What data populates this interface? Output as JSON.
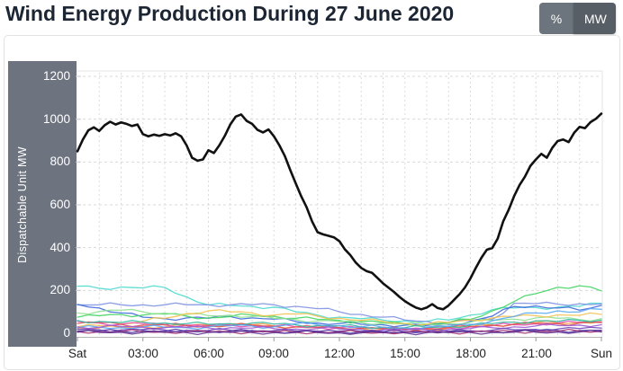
{
  "header": {
    "title": "Wind Energy Production During 27 June 2020",
    "unit_toggle": {
      "percent_label": "%",
      "mw_label": "MW",
      "active": "MW"
    }
  },
  "chart": {
    "y_axis_label": "Dispatchable Unit MW"
  },
  "colors": {
    "title_text": "#1c2533",
    "axis_panel": "#6d7480",
    "percent_button": "#6c757d",
    "mw_button_active": "#575e66",
    "card_border": "#e2e2e2",
    "gridline": "#d9d9d9",
    "total_line": "#111111"
  },
  "chart_data": {
    "type": "line",
    "title": "Wind Energy Production During 27 June 2020",
    "xlabel": "",
    "ylabel": "Dispatchable Unit MW",
    "ylim": [
      0,
      1200
    ],
    "xlim_hours": [
      0,
      24
    ],
    "y_ticks": [
      0,
      200,
      400,
      600,
      800,
      1000,
      1200
    ],
    "x_tick_hours": [
      0,
      3,
      6,
      9,
      12,
      15,
      18,
      21,
      24
    ],
    "x_tick_labels": [
      "Sat",
      "03:00",
      "06:00",
      "09:00",
      "12:00",
      "15:00",
      "18:00",
      "21:00",
      "Sun"
    ],
    "grid": "dashed horizontal every 200 MW, dashed vertical every hour",
    "legend": "none",
    "series": [
      {
        "name": "total-wind-production",
        "role": "total",
        "color": "#111111",
        "step_hours": 0.25,
        "values": [
          850,
          905,
          948,
          962,
          945,
          972,
          988,
          975,
          985,
          978,
          968,
          975,
          930,
          920,
          928,
          922,
          930,
          924,
          934,
          920,
          878,
          820,
          806,
          812,
          855,
          842,
          878,
          922,
          975,
          1012,
          1022,
          992,
          978,
          950,
          938,
          952,
          920,
          878,
          828,
          762,
          700,
          640,
          588,
          522,
          472,
          462,
          455,
          448,
          430,
          392,
          365,
          330,
          305,
          290,
          282,
          258,
          233,
          213,
          193,
          170,
          150,
          134,
          120,
          112,
          120,
          136,
          118,
          112,
          130,
          156,
          182,
          214,
          256,
          306,
          352,
          390,
          398,
          442,
          522,
          576,
          640,
          692,
          732,
          782,
          812,
          838,
          820,
          866,
          898,
          905,
          893,
          936,
          964,
          958,
          986,
          1002,
          1026
        ]
      },
      {
        "name": "unit-turquoise",
        "role": "unit",
        "color": "#4ad8ce",
        "step_hours": 1,
        "values": [
          220,
          210,
          216,
          212,
          214,
          170,
          132,
          130,
          126,
          122,
          100,
          85,
          75,
          68,
          62,
          58,
          55,
          62,
          85,
          110,
          118,
          120,
          122,
          126,
          140
        ]
      },
      {
        "name": "unit-periwinkle",
        "role": "unit",
        "color": "#7b8fe0",
        "step_hours": 1,
        "values": [
          133,
          133,
          133,
          133,
          133,
          133,
          133,
          133,
          133,
          133,
          126,
          115,
          100,
          88,
          75,
          62,
          55,
          50,
          60,
          65,
          140,
          138,
          136,
          138,
          137
        ]
      },
      {
        "name": "unit-royal-blue",
        "role": "unit",
        "color": "#3a66d8",
        "step_hours": 1,
        "values": [
          135,
          118,
          95,
          75,
          68,
          72,
          70,
          78,
          72,
          66,
          55,
          48,
          45,
          42,
          40,
          38,
          36,
          42,
          55,
          80,
          125,
          128,
          118,
          108,
          130
        ]
      },
      {
        "name": "unit-green",
        "role": "unit",
        "color": "#3fd45f",
        "step_hours": 1,
        "values": [
          75,
          82,
          88,
          85,
          90,
          80,
          72,
          78,
          85,
          80,
          70,
          65,
          60,
          55,
          50,
          45,
          42,
          50,
          65,
          105,
          148,
          185,
          215,
          222,
          198
        ]
      },
      {
        "name": "unit-light-green",
        "role": "unit",
        "color": "#90e090",
        "step_hours": 1,
        "values": [
          95,
          102,
          108,
          100,
          94,
          88,
          82,
          85,
          78,
          70,
          64,
          58,
          54,
          50,
          47,
          44,
          42,
          45,
          52,
          60,
          66,
          72,
          70,
          64,
          68
        ]
      },
      {
        "name": "unit-gold",
        "role": "unit",
        "color": "#f2c14e",
        "step_hours": 1,
        "values": [
          30,
          36,
          44,
          56,
          70,
          92,
          105,
          100,
          95,
          85,
          90,
          80,
          70,
          60,
          55,
          46,
          42,
          50,
          62,
          72,
          78,
          82,
          86,
          84,
          88
        ]
      },
      {
        "name": "unit-orange",
        "role": "unit",
        "color": "#f59a3c",
        "step_hours": 1,
        "values": [
          22,
          25,
          28,
          32,
          30,
          35,
          40,
          44,
          40,
          34,
          30,
          28,
          25,
          22,
          20,
          18,
          20,
          25,
          30,
          38,
          44,
          50,
          48,
          52,
          55
        ]
      },
      {
        "name": "unit-magenta",
        "role": "unit",
        "color": "#e24bb0",
        "step_hours": 1,
        "values": [
          55,
          48,
          42,
          45,
          40,
          38,
          35,
          38,
          36,
          33,
          30,
          28,
          26,
          24,
          22,
          20,
          22,
          25,
          30,
          35,
          40,
          44,
          48,
          50,
          52
        ]
      },
      {
        "name": "unit-red",
        "role": "unit",
        "color": "#de5151",
        "step_hours": 1,
        "values": [
          45,
          50,
          42,
          38,
          40,
          36,
          34,
          36,
          38,
          33,
          30,
          28,
          26,
          24,
          22,
          20,
          22,
          26,
          32,
          38,
          42,
          46,
          44,
          48,
          50
        ]
      },
      {
        "name": "unit-teal",
        "role": "unit",
        "color": "#2fb5a0",
        "step_hours": 1,
        "values": [
          60,
          55,
          50,
          52,
          48,
          45,
          42,
          45,
          48,
          43,
          40,
          36,
          34,
          30,
          28,
          26,
          28,
          32,
          38,
          45,
          52,
          58,
          55,
          60,
          62
        ]
      },
      {
        "name": "unit-sky-blue",
        "role": "unit",
        "color": "#58a6f0",
        "step_hours": 1,
        "values": [
          25,
          28,
          26,
          30,
          28,
          26,
          30,
          35,
          34,
          30,
          45,
          40,
          35,
          30,
          28,
          25,
          28,
          32,
          42,
          58,
          78,
          95,
          105,
          100,
          112
        ]
      },
      {
        "name": "unit-purple",
        "role": "unit",
        "color": "#9b59d0",
        "step_hours": 1,
        "values": [
          30,
          28,
          32,
          28,
          26,
          28,
          25,
          26,
          24,
          22,
          20,
          22,
          20,
          18,
          16,
          15,
          16,
          18,
          22,
          26,
          30,
          34,
          36,
          38,
          40
        ]
      },
      {
        "name": "unit-violet",
        "role": "unit",
        "color": "#6a3fb5",
        "step_hours": 1,
        "values": [
          18,
          16,
          15,
          17,
          15,
          14,
          13,
          14,
          13,
          12,
          11,
          10,
          10,
          9,
          8,
          8,
          9,
          10,
          12,
          14,
          16,
          18,
          20,
          22,
          24
        ]
      },
      {
        "name": "unit-indigo",
        "role": "unit",
        "color": "#4b2f9e",
        "step_hours": 1,
        "values": [
          10,
          11,
          10,
          12,
          10,
          9,
          10,
          11,
          10,
          9,
          9,
          8,
          8,
          8,
          7,
          7,
          8,
          8,
          9,
          10,
          11,
          12,
          13,
          13,
          14
        ]
      },
      {
        "name": "unit-dark-magenta",
        "role": "unit",
        "color": "#a03070",
        "step_hours": 1,
        "values": [
          8,
          7,
          8,
          7,
          6,
          7,
          6,
          7,
          6,
          6,
          5,
          5,
          5,
          4,
          4,
          4,
          5,
          5,
          6,
          7,
          8,
          9,
          9,
          10,
          10
        ]
      },
      {
        "name": "unit-dark-violet",
        "role": "unit",
        "color": "#5b2d91",
        "step_hours": 1,
        "values": [
          5,
          4,
          5,
          4,
          4,
          3,
          4,
          4,
          3,
          3,
          3,
          3,
          2,
          2,
          2,
          2,
          3,
          3,
          4,
          4,
          5,
          5,
          6,
          6,
          6
        ]
      }
    ]
  }
}
